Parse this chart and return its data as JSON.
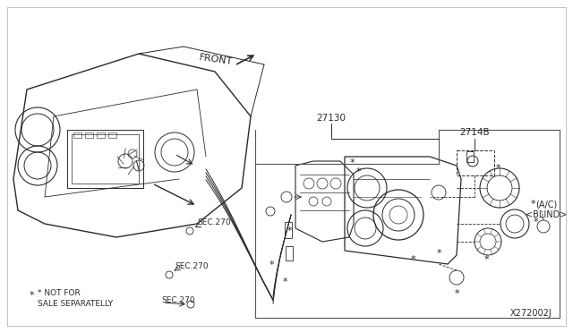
{
  "bg_color": "#ffffff",
  "lc": "#2a2a2a",
  "tc": "#2a2a2a",
  "diagram_id": "X272002J",
  "label_27130": "27130",
  "label_2714B": "2714B",
  "label_front": "FRONT",
  "label_sec270": "SEC.270",
  "label_not_for": "* NOT FOR",
  "label_sale": "SALE SEPARATELLY",
  "label_ac": "(A/C)",
  "label_blind": "<BLIND>"
}
